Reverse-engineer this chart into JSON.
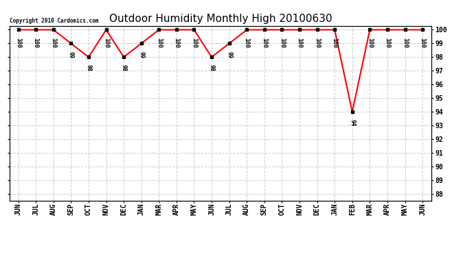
{
  "title": "Outdoor Humidity Monthly High 20100630",
  "xlabel_labels": [
    "JUN",
    "JUL",
    "AUG",
    "SEP",
    "OCT",
    "NOV",
    "DEC",
    "JAN",
    "MAR",
    "APR",
    "MAY",
    "JUN",
    "JUL",
    "AUG",
    "SEP",
    "OCT",
    "NOV",
    "DEC",
    "JAN",
    "FEB",
    "MAR",
    "APR",
    "MAY",
    "JUN"
  ],
  "values": [
    100,
    100,
    100,
    99,
    98,
    100,
    98,
    99,
    100,
    100,
    100,
    98,
    99,
    100,
    100,
    100,
    100,
    100,
    100,
    94,
    100,
    100,
    100,
    100
  ],
  "ylim_min": 87.5,
  "ylim_max": 100.3,
  "yticks": [
    88,
    89,
    90,
    91,
    92,
    93,
    94,
    95,
    96,
    97,
    98,
    99,
    100
  ],
  "line_color": "#ff0000",
  "marker": "s",
  "marker_color": "#000000",
  "marker_size": 3.5,
  "grid_color": "#cccccc",
  "bg_color": "#ffffff",
  "copyright_text": "Copyright 2010 Cardomics.com",
  "title_fontsize": 11,
  "tick_fontsize": 7,
  "annot_fontsize": 6,
  "line_width": 1.5
}
